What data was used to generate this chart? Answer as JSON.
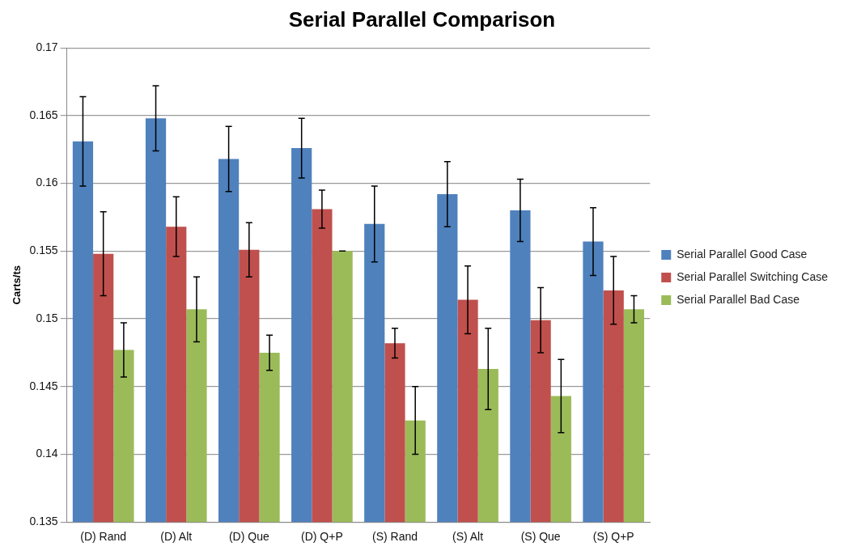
{
  "chart_data": {
    "type": "bar",
    "title": "Serial Parallel Comparison",
    "ylabel": "Carts/ts",
    "categories": [
      "(D) Rand",
      "(D) Alt",
      "(D) Que",
      "(D) Q+P",
      "(S) Rand",
      "(S) Alt",
      "(S) Que",
      "(S) Q+P"
    ],
    "series": [
      {
        "name": "Serial Parallel Good Case",
        "color": "#4f81bd",
        "values": [
          0.1631,
          0.1648,
          0.1618,
          0.1626,
          0.157,
          0.1592,
          0.158,
          0.1557
        ],
        "errors": [
          0.0033,
          0.0024,
          0.0024,
          0.0022,
          0.0028,
          0.0024,
          0.0023,
          0.0025
        ]
      },
      {
        "name": "Serial Parallel Switching Case",
        "color": "#c0504d",
        "values": [
          0.1548,
          0.1568,
          0.1551,
          0.1581,
          0.1482,
          0.1514,
          0.1499,
          0.1521
        ],
        "errors": [
          0.0031,
          0.0022,
          0.002,
          0.0014,
          0.0011,
          0.0025,
          0.0024,
          0.0025
        ]
      },
      {
        "name": "Serial Parallel Bad Case",
        "color": "#9bbb59",
        "values": [
          0.1477,
          0.1507,
          0.1475,
          0.155,
          0.1425,
          0.1463,
          0.1443,
          0.1507
        ],
        "errors": [
          0.002,
          0.0024,
          0.0013,
          0,
          0.0025,
          0.003,
          0.0027,
          0.001
        ]
      }
    ],
    "ylim": [
      0.135,
      0.17
    ],
    "yticks": [
      0.135,
      0.14,
      0.145,
      0.15,
      0.155,
      0.16,
      0.165,
      0.17
    ],
    "grid": "y",
    "legend": "right"
  }
}
